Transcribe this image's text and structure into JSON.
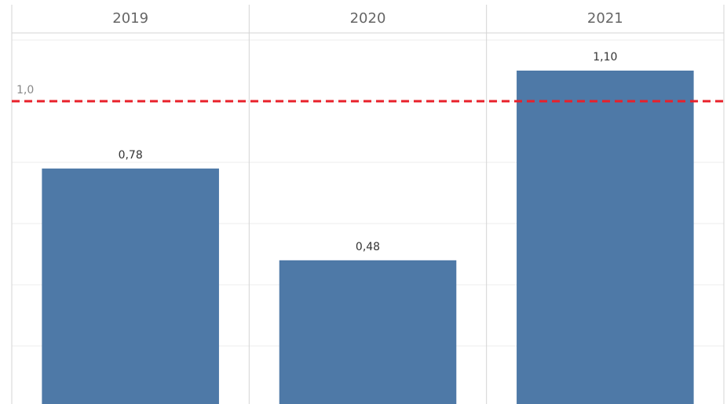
{
  "chart_data": {
    "type": "bar",
    "categories": [
      "2019",
      "2020",
      "2021"
    ],
    "values": [
      0.78,
      0.48,
      1.1
    ],
    "value_labels": [
      "0,78",
      "0,48",
      "1,10"
    ],
    "color": "#4e79a7",
    "ylim": [
      0,
      1.2
    ],
    "yticks": [
      0.2,
      0.4,
      0.6,
      0.8,
      1.0,
      1.2
    ],
    "grid": true,
    "reference_line": {
      "value": 1.0,
      "label": "1,0",
      "color": "#e8202a"
    }
  }
}
